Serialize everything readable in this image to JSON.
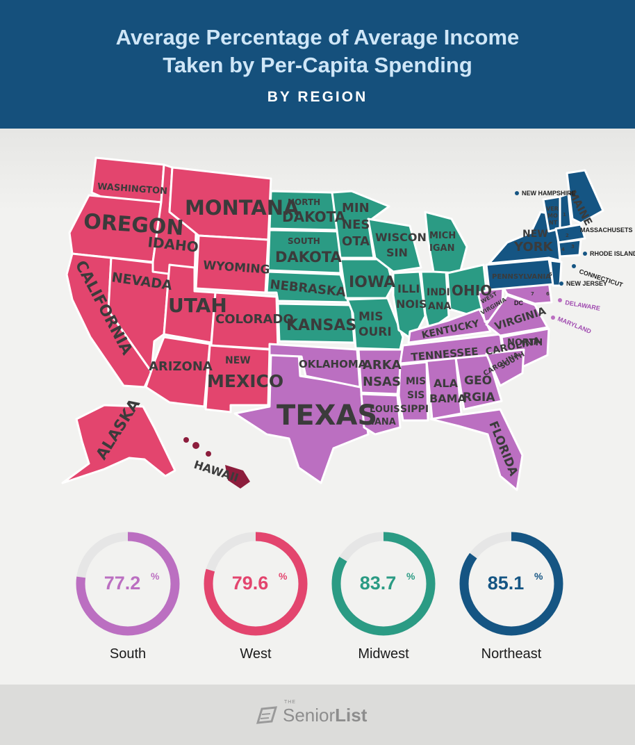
{
  "title_line1": "Average Percentage of Average Income",
  "title_line2": "Taken by Per-Capita Spending",
  "subtitle": "BY REGION",
  "map": {
    "region_colors": {
      "West": "#e3456e",
      "Midwest": "#2b9b84",
      "South": "#bb6fc1",
      "Northeast": "#155583",
      "Hawaii_label": "#8c1d3c"
    },
    "state_labels": {
      "washington": "WASHINGTON",
      "oregon": "OREGON",
      "california": "CALIFORNIA",
      "nevada": "NEVADA",
      "idaho": "IDAHO",
      "montana": "MONTANA",
      "wyoming": "WYOMING",
      "utah": "UTAH",
      "colorado": "COLORADO",
      "arizona": "ARIZONA",
      "new_mexico_1": "NEW",
      "new_mexico_2": "MEXICO",
      "alaska": "ALASKA",
      "hawaii": "HAWAII",
      "north_dakota_1": "NORTH",
      "north_dakota_2": "DAKOTA",
      "south_dakota_1": "SOUTH",
      "south_dakota_2": "DAKOTA",
      "nebraska": "NEBRASKA",
      "kansas": "KANSAS",
      "minnesota_1": "MIN",
      "minnesota_2": "NES",
      "minnesota_3": "OTA",
      "iowa": "IOWA",
      "missouri_1": "MIS",
      "missouri_2": "OURI",
      "wisconsin_1": "WISCON",
      "wisconsin_2": "SIN",
      "illinois_1": "ILLI",
      "illinois_2": "NOIS",
      "indiana_1": "INDI",
      "indiana_2": "ANA",
      "michigan_1": "MICH",
      "michigan_2": "IGAN",
      "ohio": "OHIO",
      "texas": "TEXAS",
      "oklahoma": "OKLAHOMA",
      "arkansas_1": "ARKA",
      "arkansas_2": "NSAS",
      "louisiana_1": "LOUIS",
      "louisiana_2": "IANA",
      "mississippi_1": "MIS",
      "mississippi_2": "SIS",
      "mississippi_3": "SIPPI",
      "alabama_1": "ALA",
      "alabama_2": "BAMA",
      "georgia_1": "GEO",
      "georgia_2": "RGIA",
      "florida": "FLORIDA",
      "tennessee": "TENNESSEE",
      "kentucky": "KENTUCKY",
      "west_virginia_1": "WEST",
      "west_virginia_2": "VIRGINIA",
      "virginia": "VIRGINIA",
      "north_carolina_1": "NORTH",
      "north_carolina_2": "CAROLINA",
      "south_carolina_1": "SOUTH",
      "south_carolina_2": "CAROLINA",
      "dc": "DC",
      "delaware": "DELAWARE",
      "maryland": "MARYLAND",
      "pennsylvania": "PENNSYLVANIA",
      "new_york_1": "NEW",
      "new_york_2": "YORK",
      "vermont_1": "VER",
      "vermont_2": "MO",
      "vermont_3": "NT",
      "maine": "MAINE",
      "new_hampshire": "NEW HAMPSHIRE",
      "massachusetts": "MASSACHUSETS",
      "rhode_island": "RHODE ISLAND",
      "connecticut": "CONNECTICUT",
      "new_jersey": "NEW JERSEY",
      "num_1": "1",
      "num_2": "2",
      "num_3": "3",
      "num_4": "4",
      "num_5": "5",
      "num_6": "6",
      "num_7": "7"
    }
  },
  "chart_data": {
    "type": "donut",
    "unit": "%",
    "max": 100,
    "categories": [
      "South",
      "West",
      "Midwest",
      "Northeast"
    ],
    "values": [
      77.2,
      79.6,
      83.7,
      85.1
    ],
    "colors": [
      "#bb6fc1",
      "#e3456e",
      "#2b9b84",
      "#155583"
    ],
    "track_color": "#e6e6e6"
  },
  "donut_labels": {
    "south": "77.2",
    "west": "79.6",
    "midwest": "83.7",
    "northeast": "85.1",
    "pct": "%"
  },
  "footer": {
    "logo_the": "THE",
    "logo_senior": "Senior",
    "logo_list": "List"
  }
}
